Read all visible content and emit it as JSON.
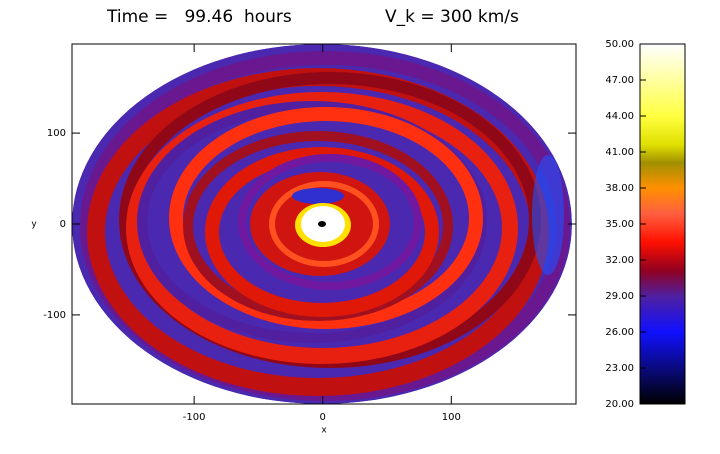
{
  "chart_data": {
    "type": "heatmap",
    "title": "Time =   99.46  hours",
    "subtitle": "V_k = 300 km/s",
    "x_label": "x",
    "y_label": "y",
    "xlim": [
      -195,
      197
    ],
    "ylim": [
      -198,
      198
    ],
    "xticks": [
      -100,
      0,
      100
    ],
    "yticks": [
      -100,
      0,
      100
    ],
    "colorbar": {
      "lim": [
        20,
        50
      ],
      "ticks": [
        {
          "value": 20,
          "label": "20.00"
        },
        {
          "value": 23,
          "label": "23.00"
        },
        {
          "value": 26,
          "label": "26.00"
        },
        {
          "value": 29,
          "label": "29.00"
        },
        {
          "value": 32,
          "label": "32.00"
        },
        {
          "value": 35,
          "label": "35.00"
        },
        {
          "value": 38,
          "label": "38.00"
        },
        {
          "value": 41,
          "label": "41.00"
        },
        {
          "value": 44,
          "label": "44.00"
        },
        {
          "value": 47,
          "label": "47.00"
        },
        {
          "value": 50,
          "label": "50.00"
        }
      ]
    }
  }
}
